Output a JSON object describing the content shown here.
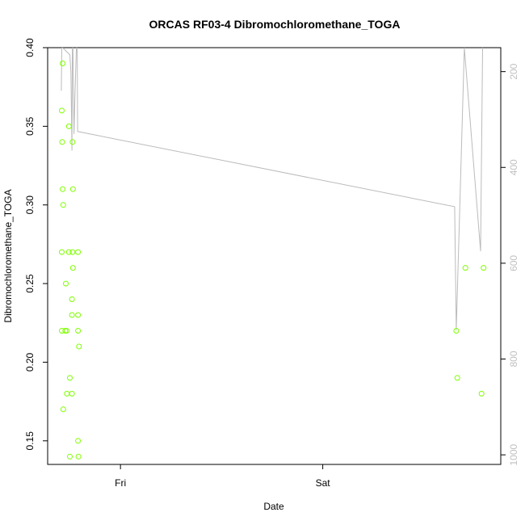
{
  "chart_data": {
    "type": "scatter",
    "title": "ORCAS RF03-4 Dibromochloromethane_TOGA",
    "xlabel": "Date",
    "ylabel": "Dibromochloromethane_TOGA",
    "x_ticks": [
      {
        "label": "Fri",
        "value": 1.0
      },
      {
        "label": "Sat",
        "value": 2.0
      }
    ],
    "xlim": [
      0.64,
      2.88
    ],
    "ylim": [
      0.135,
      0.4
    ],
    "y_ticks": [
      0.15,
      0.2,
      0.25,
      0.3,
      0.35,
      0.4
    ],
    "y_tick_labels": [
      "0.15",
      "0.20",
      "0.25",
      "0.30",
      "0.35",
      "0.40"
    ],
    "y2_ticks": [
      200,
      400,
      600,
      800,
      1000
    ],
    "y2_tick_labels": [
      "200",
      "400",
      "600",
      "800",
      "1000"
    ],
    "y2lim": [
      1020,
      150
    ],
    "grid": false,
    "series": [
      {
        "type": "scatter",
        "color": "#7fff00",
        "points": [
          [
            0.71,
            0.36
          ],
          [
            0.71,
            0.27
          ],
          [
            0.71,
            0.22
          ],
          [
            0.714,
            0.39
          ],
          [
            0.712,
            0.34
          ],
          [
            0.714,
            0.31
          ],
          [
            0.717,
            0.3
          ],
          [
            0.717,
            0.17
          ],
          [
            0.727,
            0.22
          ],
          [
            0.734,
            0.22
          ],
          [
            0.73,
            0.25
          ],
          [
            0.735,
            0.18
          ],
          [
            0.745,
            0.35
          ],
          [
            0.745,
            0.27
          ],
          [
            0.75,
            0.19
          ],
          [
            0.75,
            0.14
          ],
          [
            0.76,
            0.24
          ],
          [
            0.76,
            0.23
          ],
          [
            0.76,
            0.18
          ],
          [
            0.763,
            0.27
          ],
          [
            0.763,
            0.34
          ],
          [
            0.765,
            0.31
          ],
          [
            0.765,
            0.26
          ],
          [
            0.79,
            0.27
          ],
          [
            0.79,
            0.23
          ],
          [
            0.79,
            0.22
          ],
          [
            0.79,
            0.15
          ],
          [
            0.792,
            0.14
          ],
          [
            0.795,
            0.21
          ],
          [
            2.66,
            0.22
          ],
          [
            2.665,
            0.19
          ],
          [
            2.705,
            0.26
          ],
          [
            2.785,
            0.18
          ],
          [
            2.795,
            0.26
          ]
        ]
      },
      {
        "type": "line",
        "axis": "y2",
        "color": "#bbbbbb",
        "points": [
          [
            0.7075,
            240
          ],
          [
            0.71,
            150
          ],
          [
            0.714,
            150
          ],
          [
            0.75,
            165
          ],
          [
            0.755,
            200
          ],
          [
            0.76,
            365
          ],
          [
            0.762,
            150
          ],
          [
            0.765,
            150
          ],
          [
            0.77,
            330
          ],
          [
            0.775,
            250
          ],
          [
            0.782,
            150
          ],
          [
            0.786,
            150
          ],
          [
            0.788,
            325
          ],
          [
            2.652,
            482
          ],
          [
            2.66,
            740
          ],
          [
            2.7,
            150
          ],
          [
            2.78,
            575
          ],
          [
            2.79,
            150
          ]
        ]
      }
    ]
  }
}
